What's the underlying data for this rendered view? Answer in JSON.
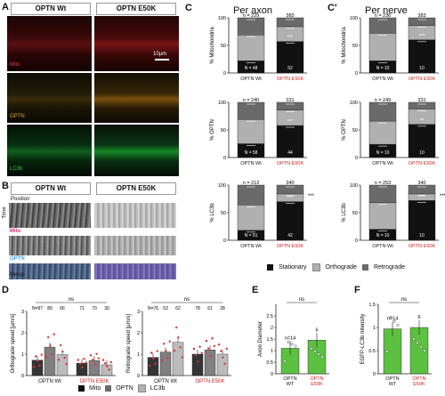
{
  "panel_a": {
    "letter": "A",
    "headers": [
      "OPTN Wt",
      "OPTN E50K"
    ],
    "rows": [
      {
        "label": "Mito",
        "color": "#e0403a"
      },
      {
        "label": "OPTN",
        "color": "#e8a020"
      },
      {
        "label": "LC3b",
        "color": "#3ec050"
      }
    ],
    "scale": "10µm"
  },
  "panel_b": {
    "letter": "B",
    "headers": [
      "OPTN Wt",
      "OPTN E50K"
    ],
    "axis_position": "Position",
    "axis_time": "Time",
    "rows": [
      {
        "label": "Mito",
        "color": "#e0307a"
      },
      {
        "label": "OPTN",
        "color": "#40a0e0"
      },
      {
        "label": "Merge",
        "color": "#333"
      }
    ]
  },
  "panel_c": {
    "letter": "C",
    "title": "Per axon",
    "letter2": "C'",
    "title2": "Per nerve",
    "legend": [
      "Stationary",
      "Orthograde",
      "Retrograde"
    ]
  },
  "panel_d": {
    "letter": "D",
    "legend": [
      "Mito",
      "OPTN",
      "LC3b"
    ]
  },
  "panel_e": {
    "letter": "E"
  },
  "panel_f": {
    "letter": "F"
  },
  "colors": {
    "stationary": "#111111",
    "orthograde": "#b0b0b0",
    "retrograde": "#6a6a6a",
    "red_label": "#d02020",
    "green_bar": "#5cc040"
  },
  "chart_data": [
    {
      "id": "C-axon-mito",
      "type": "bar",
      "ylabel": "% Mitochondria",
      "categories": [
        "OPTN Wt",
        "OPTN E50K"
      ],
      "n": [
        "n = 229",
        "383"
      ],
      "N": [
        "N = 48",
        "52"
      ],
      "series": [
        {
          "name": "Stationary",
          "values": [
            22,
            57
          ]
        },
        {
          "name": "Orthograde",
          "values": [
            47,
            27
          ]
        },
        {
          "name": "Retrograde",
          "values": [
            31,
            16
          ]
        }
      ],
      "sig": [
        "",
        "***"
      ],
      "ylim": [
        0,
        100
      ]
    },
    {
      "id": "C-axon-optn",
      "type": "bar",
      "ylabel": "% OPTN",
      "categories": [
        "OPTN Wt",
        "OPTN E50K"
      ],
      "n": [
        "n = 240",
        "331"
      ],
      "N": [
        "N = 58",
        "44"
      ],
      "series": [
        {
          "name": "Stationary",
          "values": [
            25,
            58
          ]
        },
        {
          "name": "Orthograde",
          "values": [
            44,
            28
          ]
        },
        {
          "name": "Retrograde",
          "values": [
            31,
            14
          ]
        }
      ],
      "sig": [
        "",
        "***"
      ],
      "ylim": [
        0,
        100
      ]
    },
    {
      "id": "C-axon-lc3b",
      "type": "bar",
      "ylabel": "% LC3b",
      "categories": [
        "OPTN Wt",
        "OPTN E50K"
      ],
      "n": [
        "n = 213",
        "340"
      ],
      "N": [
        "N = 51",
        "42"
      ],
      "series": [
        {
          "name": "Stationary",
          "values": [
            18,
            70
          ]
        },
        {
          "name": "Orthograde",
          "values": [
            46,
            14
          ]
        },
        {
          "name": "Retrograde",
          "values": [
            36,
            16
          ]
        }
      ],
      "sig": [
        "",
        "***"
      ],
      "extra": "***",
      "ylim": [
        0,
        100
      ]
    },
    {
      "id": "C-nerve-mito",
      "type": "bar",
      "ylabel": "% Mitochondria",
      "categories": [
        "OPTN Wt",
        "OPTN E50K"
      ],
      "n": [
        "n = 236",
        "383"
      ],
      "N": [
        "N = 10",
        "10"
      ],
      "series": [
        {
          "name": "Stationary",
          "values": [
            22,
            60
          ]
        },
        {
          "name": "Orthograde",
          "values": [
            50,
            26
          ]
        },
        {
          "name": "Retrograde",
          "values": [
            28,
            14
          ]
        }
      ],
      "sig": [
        "",
        "***"
      ],
      "ylim": [
        0,
        100
      ]
    },
    {
      "id": "C-nerve-optn",
      "type": "bar",
      "ylabel": "% OPTN",
      "categories": [
        "OPTN Wt",
        "OPTN E50K"
      ],
      "n": [
        "n = 249",
        "331"
      ],
      "N": [
        "N = 10",
        "10"
      ],
      "series": [
        {
          "name": "Stationary",
          "values": [
            24,
            60
          ]
        },
        {
          "name": "Orthograde",
          "values": [
            42,
            28
          ]
        },
        {
          "name": "Retrograde",
          "values": [
            34,
            12
          ]
        }
      ],
      "sig": [
        "",
        "**"
      ],
      "ylim": [
        0,
        100
      ]
    },
    {
      "id": "C-nerve-lc3b",
      "type": "bar",
      "ylabel": "% LC3b",
      "categories": [
        "OPTN Wt",
        "OPTN E50K"
      ],
      "n": [
        "n = 253",
        "340"
      ],
      "N": [
        "N = 10",
        "10"
      ],
      "series": [
        {
          "name": "Stationary",
          "values": [
            20,
            72
          ]
        },
        {
          "name": "Orthograde",
          "values": [
            48,
            12
          ]
        },
        {
          "name": "Retrograde",
          "values": [
            32,
            16
          ]
        }
      ],
      "sig": [
        "",
        "***"
      ],
      "extra": "***",
      "ylim": [
        0,
        100
      ]
    },
    {
      "id": "D-ortho",
      "type": "bar",
      "ylabel": "Orthograde speed [µm/s]",
      "categories": [
        "OPTN Wt",
        "OPTN E50K"
      ],
      "n_top": [
        "N=97",
        "89",
        "66",
        "71",
        "70",
        "30"
      ],
      "ns": "ns",
      "series": [
        {
          "name": "Mito",
          "values": [
            0.72,
            0.58
          ]
        },
        {
          "name": "OPTN",
          "values": [
            1.33,
            0.7
          ]
        },
        {
          "name": "LC3b",
          "values": [
            0.98,
            0.5
          ]
        }
      ],
      "ylim": [
        0,
        3
      ],
      "yticks": [
        0,
        1,
        2,
        3
      ]
    },
    {
      "id": "D-retro",
      "type": "bar",
      "ylabel": "Retrograde speed [µm/s]",
      "categories": [
        "OPTN Wt",
        "OPTN E50K"
      ],
      "n_top": [
        "N=76",
        "53",
        "62",
        "78",
        "61",
        "28"
      ],
      "ns": "ns",
      "series": [
        {
          "name": "Mito",
          "values": [
            0.85,
            1.0
          ]
        },
        {
          "name": "OPTN",
          "values": [
            1.1,
            1.2
          ]
        },
        {
          "name": "LC3b",
          "values": [
            1.55,
            1.0
          ]
        }
      ],
      "ylim": [
        0,
        3
      ],
      "yticks": [
        0,
        1,
        2,
        3
      ]
    },
    {
      "id": "E",
      "type": "bar",
      "ylabel": "Axon Diameter",
      "categories": [
        "OPTN WT",
        "OPTN E50K"
      ],
      "n": [
        "n=14",
        "6"
      ],
      "values": [
        1.1,
        1.45
      ],
      "sig": "ns",
      "ylim": [
        0,
        3
      ],
      "yticks": [
        0,
        0.5,
        1.0,
        1.5,
        2.0,
        2.5
      ]
    },
    {
      "id": "F",
      "type": "bar",
      "ylabel": "EGFP-LC3b Intensity",
      "categories": [
        "OPTN WT",
        "OPTN E50K"
      ],
      "n": [
        "n=14",
        "6"
      ],
      "values": [
        0.97,
        1.0
      ],
      "sig": "ns",
      "ylim": [
        0,
        1.5
      ],
      "yticks": [
        0,
        0.5,
        1.0,
        1.5
      ]
    }
  ]
}
